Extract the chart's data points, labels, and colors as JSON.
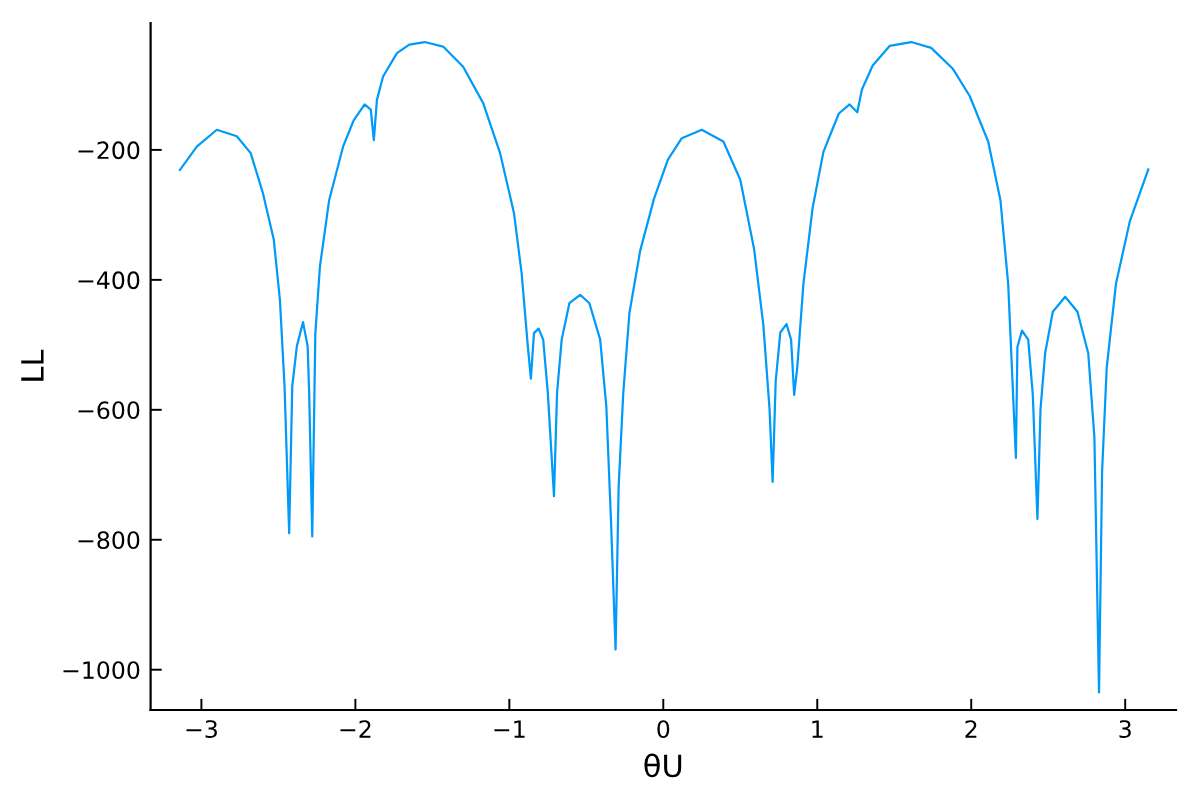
{
  "chart_data": {
    "type": "line",
    "xlabel": "θU",
    "ylabel": "LL",
    "x": [
      -3.14,
      -3.03,
      -2.9,
      -2.77,
      -2.68,
      -2.6,
      -2.53,
      -2.49,
      -2.46,
      -2.43,
      -2.41,
      -2.38,
      -2.34,
      -2.31,
      -2.3,
      -2.28,
      -2.26,
      -2.23,
      -2.17,
      -2.08,
      -2.01,
      -1.94,
      -1.9,
      -1.88,
      -1.86,
      -1.82,
      -1.73,
      -1.65,
      -1.55,
      -1.43,
      -1.3,
      -1.17,
      -1.06,
      -0.97,
      -0.92,
      -0.88,
      -0.86,
      -0.84,
      -0.81,
      -0.78,
      -0.75,
      -0.71,
      -0.69,
      -0.66,
      -0.61,
      -0.54,
      -0.48,
      -0.41,
      -0.37,
      -0.34,
      -0.31,
      -0.29,
      -0.26,
      -0.22,
      -0.15,
      -0.06,
      0.03,
      0.12,
      0.25,
      0.39,
      0.5,
      0.59,
      0.65,
      0.69,
      0.71,
      0.73,
      0.76,
      0.8,
      0.83,
      0.85,
      0.87,
      0.91,
      0.97,
      1.04,
      1.14,
      1.21,
      1.26,
      1.29,
      1.36,
      1.47,
      1.61,
      1.74,
      1.88,
      1.99,
      2.11,
      2.19,
      2.24,
      2.26,
      2.29,
      2.3,
      2.33,
      2.37,
      2.4,
      2.43,
      2.45,
      2.48,
      2.53,
      2.61,
      2.69,
      2.76,
      2.8,
      2.83,
      2.85,
      2.88,
      2.94,
      3.03,
      3.15
    ],
    "series": [
      {
        "color": "#009af9",
        "values": [
          -231,
          -195,
          -169,
          -179,
          -205,
          -267,
          -338,
          -431,
          -564,
          -790,
          -564,
          -502,
          -465,
          -502,
          -574,
          -795,
          -482,
          -379,
          -277,
          -195,
          -154,
          -130,
          -138,
          -185,
          -123,
          -87,
          -51,
          -38,
          -34,
          -41,
          -72,
          -128,
          -205,
          -297,
          -390,
          -502,
          -552,
          -482,
          -475,
          -492,
          -574,
          -733,
          -574,
          -492,
          -436,
          -423,
          -436,
          -492,
          -595,
          -769,
          -969,
          -718,
          -574,
          -451,
          -355,
          -275,
          -215,
          -182,
          -169,
          -187,
          -246,
          -353,
          -470,
          -599,
          -711,
          -556,
          -481,
          -468,
          -492,
          -577,
          -535,
          -406,
          -289,
          -203,
          -144,
          -130,
          -142,
          -107,
          -70,
          -40,
          -34,
          -43,
          -75,
          -117,
          -187,
          -278,
          -406,
          -513,
          -674,
          -503,
          -478,
          -492,
          -577,
          -768,
          -599,
          -513,
          -449,
          -426,
          -449,
          -513,
          -642,
          -1035,
          -695,
          -535,
          -406,
          -310,
          -230
        ]
      }
    ],
    "xlim": [
      -3.33,
      3.33
    ],
    "ylim": [
      -1062,
      -5
    ],
    "xticks": [
      {
        "value": -3,
        "label": "−3"
      },
      {
        "value": -2,
        "label": "−2"
      },
      {
        "value": -1,
        "label": "−1"
      },
      0,
      1,
      2,
      3
    ],
    "yticks": [
      {
        "value": -1000,
        "label": "−1000"
      },
      {
        "value": -800,
        "label": "−800"
      },
      {
        "value": -600,
        "label": "−600"
      },
      {
        "value": -400,
        "label": "−400"
      },
      {
        "value": -200,
        "label": "−200"
      }
    ],
    "grid": false
  }
}
